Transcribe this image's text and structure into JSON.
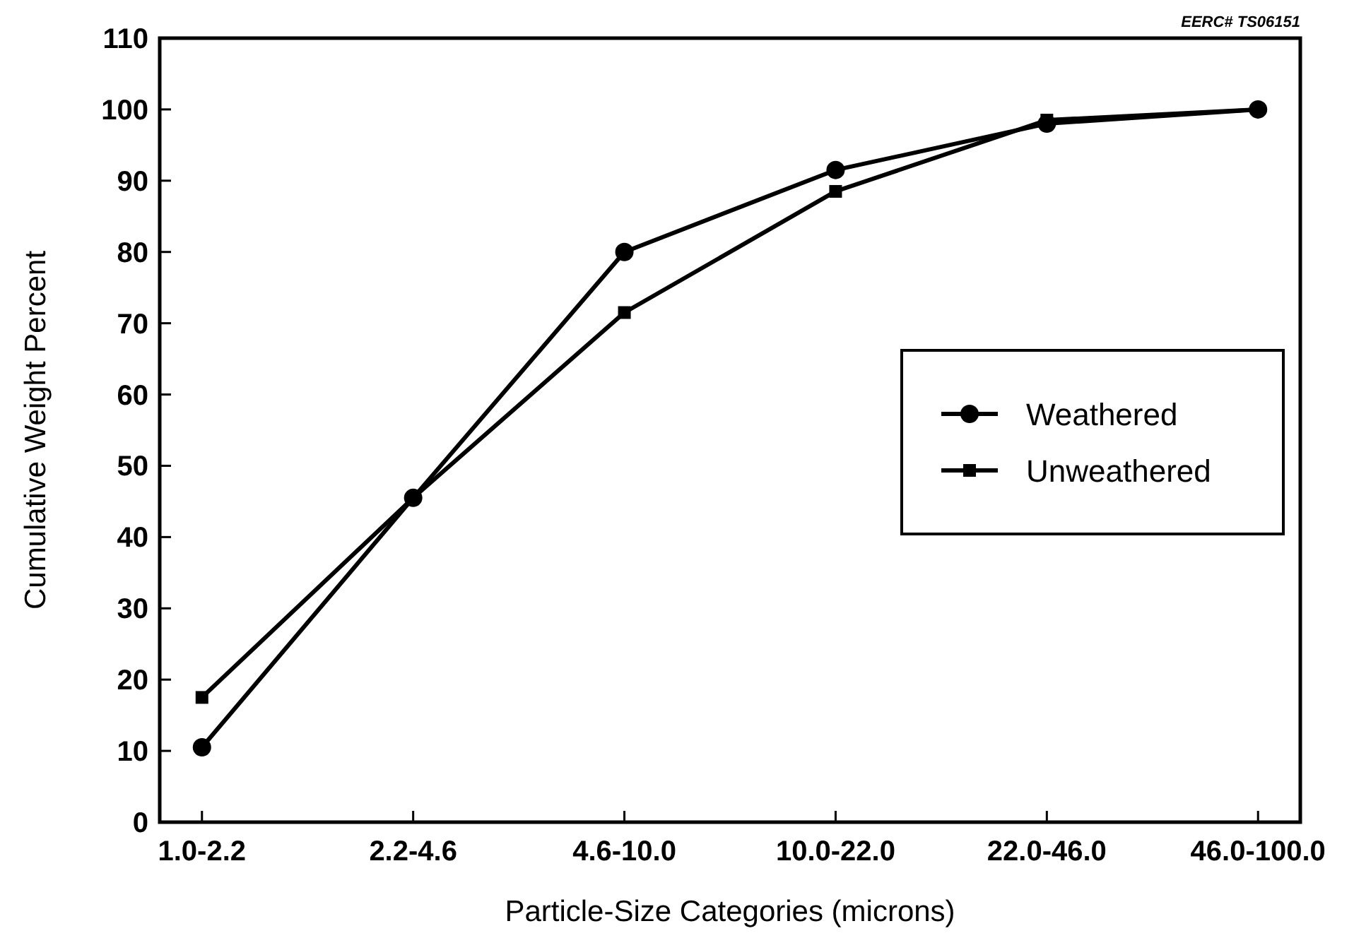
{
  "chart_data": {
    "type": "line",
    "xlabel": "Particle-Size Categories (microns)",
    "ylabel": "Cumulative Weight Percent",
    "annotations": [
      "EERC# TS06151"
    ],
    "categories": [
      "1.0-2.2",
      "2.2-4.6",
      "4.6-10.0",
      "10.0-22.0",
      "22.0-46.0",
      "46.0-100.0"
    ],
    "series": [
      {
        "name": "Weathered",
        "color": "#000000",
        "marker": "circle",
        "values": [
          10.5,
          45.5,
          80,
          91.5,
          98,
          100
        ]
      },
      {
        "name": "Unweathered",
        "color": "#000000",
        "marker": "square",
        "values": [
          17.5,
          45.5,
          71.5,
          88.5,
          98.5,
          100
        ]
      }
    ],
    "ylim": [
      0,
      110
    ],
    "yticks": [
      0,
      10,
      20,
      30,
      40,
      50,
      60,
      70,
      80,
      90,
      100,
      110
    ],
    "grid": false,
    "legend": "right",
    "line_style": "solid"
  }
}
